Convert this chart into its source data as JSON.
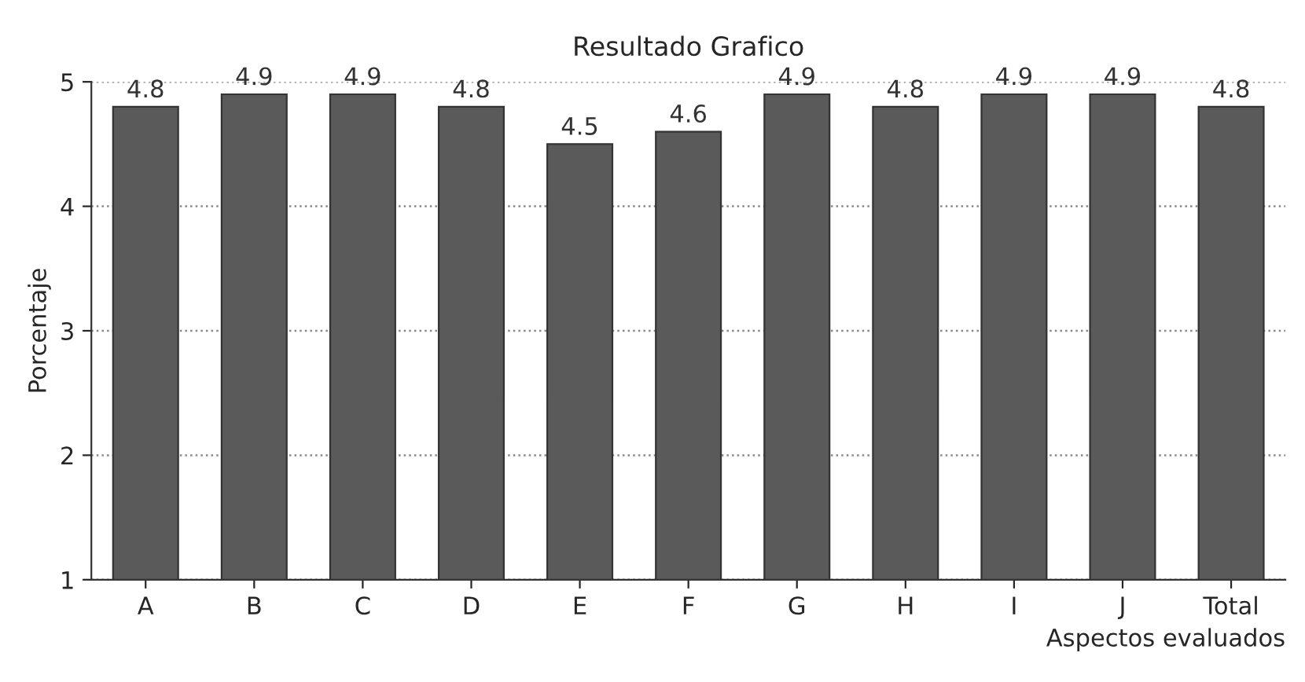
{
  "chart_data": {
    "type": "bar",
    "title": "Resultado Grafico",
    "xlabel": "Aspectos evaluados",
    "ylabel": "Porcentaje",
    "categories": [
      "A",
      "B",
      "C",
      "D",
      "E",
      "F",
      "G",
      "H",
      "I",
      "J",
      "Total"
    ],
    "values": [
      4.8,
      4.9,
      4.9,
      4.8,
      4.5,
      4.6,
      4.9,
      4.8,
      4.9,
      4.9,
      4.8
    ],
    "color": "#5a5a5a",
    "ylim": [
      1,
      5
    ],
    "yticks": [
      1,
      2,
      3,
      4,
      5
    ],
    "grid": "y",
    "data_labels": true
  }
}
